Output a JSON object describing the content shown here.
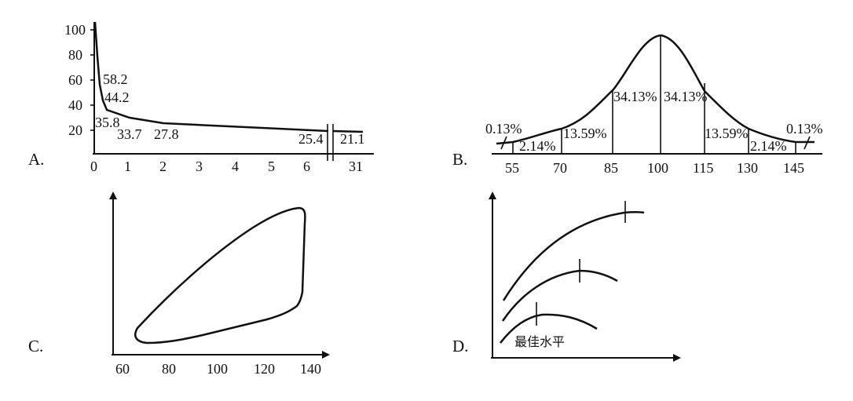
{
  "chart_data": [
    {
      "panel": "A.",
      "type": "line",
      "x_ticks": [
        "0",
        "1",
        "2",
        "3",
        "4",
        "5",
        "6",
        "31"
      ],
      "y_ticks": [
        "20",
        "40",
        "60",
        "80",
        "100"
      ],
      "points": [
        {
          "x": 0.33,
          "y": 58.2,
          "label": "58.2"
        },
        {
          "x": 0.5,
          "y": 44.2,
          "label": "44.2"
        },
        {
          "x": 0.25,
          "y": 35.8,
          "label": "35.8"
        },
        {
          "x": 1,
          "y": 33.7,
          "label": "33.7"
        },
        {
          "x": 2,
          "y": 27.8,
          "label": "27.8"
        },
        {
          "x": 6,
          "y": 25.4,
          "label": "25.4"
        },
        {
          "x": 31,
          "y": 21.1,
          "label": "21.1"
        }
      ],
      "ylim": [
        0,
        100
      ]
    },
    {
      "panel": "B.",
      "type": "area",
      "x_ticks": [
        "55",
        "70",
        "85",
        "100",
        "115",
        "130",
        "145"
      ],
      "segments": [
        {
          "range": [
            40,
            55
          ],
          "label": "0.13%"
        },
        {
          "range": [
            55,
            70
          ],
          "label": "2.14%"
        },
        {
          "range": [
            70,
            85
          ],
          "label": "13.59%"
        },
        {
          "range": [
            85,
            100
          ],
          "label": "34.13%"
        },
        {
          "range": [
            100,
            115
          ],
          "label": "34.13%"
        },
        {
          "range": [
            115,
            130
          ],
          "label": "13.59%"
        },
        {
          "range": [
            130,
            145
          ],
          "label": "2.14%"
        },
        {
          "range": [
            145,
            160
          ],
          "label": "0.13%"
        }
      ]
    },
    {
      "panel": "C.",
      "type": "line",
      "x_ticks": [
        "60",
        "80",
        "100",
        "120",
        "140"
      ]
    },
    {
      "panel": "D.",
      "type": "line",
      "annotation": "最佳水平"
    }
  ]
}
